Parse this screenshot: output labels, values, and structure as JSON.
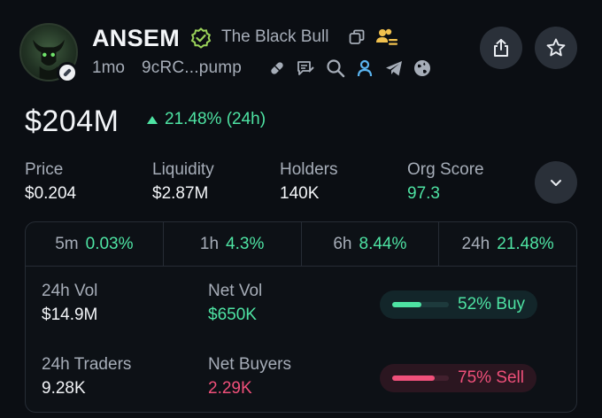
{
  "header": {
    "symbol": "ANSEM",
    "name": "The Black Bull",
    "age": "1mo",
    "address": "9cRC...pump",
    "actions": [
      "share-icon",
      "star-icon"
    ],
    "links": [
      "pill-icon",
      "message-edit-icon",
      "search-icon",
      "user-icon",
      "telegram-icon",
      "globe-icon"
    ]
  },
  "market_cap": {
    "value": "$204M",
    "change": "21.48% (24h)"
  },
  "stats": [
    {
      "label": "Price",
      "value": "$0.204"
    },
    {
      "label": "Liquidity",
      "value": "$2.87M"
    },
    {
      "label": "Holders",
      "value": "140K"
    },
    {
      "label": "Org Score",
      "value": "97.3"
    }
  ],
  "timeframes": [
    {
      "label": "5m",
      "value": "0.03%"
    },
    {
      "label": "1h",
      "value": "4.3%"
    },
    {
      "label": "6h",
      "value": "8.44%"
    },
    {
      "label": "24h",
      "value": "21.48%"
    }
  ],
  "metrics": {
    "vol_label": "24h Vol",
    "vol_value": "$14.9M",
    "net_vol_label": "Net Vol",
    "net_vol_value": "$650K",
    "traders_label": "24h Traders",
    "traders_value": "9.28K",
    "net_buyers_label": "Net Buyers",
    "net_buyers_value": "2.29K",
    "buy_pct": 52,
    "buy_text": "52% Buy",
    "sell_pct": 75,
    "sell_text": "75% Sell"
  },
  "colors": {
    "background": "#0b0e13",
    "green": "#4ee3a3",
    "red": "#f0507a",
    "verified": "#9bd35a",
    "holders_icon": "#f2c14e"
  }
}
